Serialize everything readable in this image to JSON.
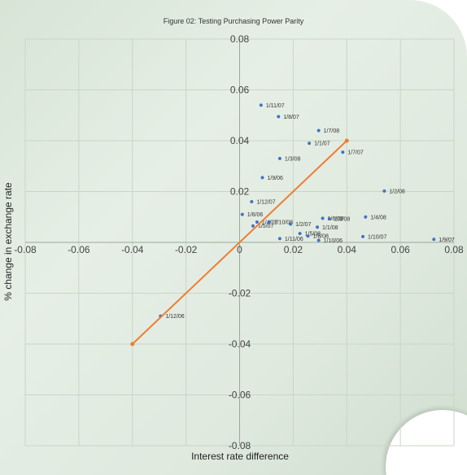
{
  "chart_data": {
    "type": "scatter",
    "title": "Figure 02: Testing Purchasing Power Parity",
    "xlabel": "Interest rate difference",
    "ylabel": "% change in exchange rate",
    "xlim": [
      -0.08,
      0.08
    ],
    "ylim": [
      -0.08,
      0.08
    ],
    "x_ticks": [
      "-0.08",
      "-0.06",
      "-0.04",
      "-0.02",
      "0",
      "0.02",
      "0.04",
      "0.06",
      "0.08"
    ],
    "y_ticks": [
      "0.08",
      "0.06",
      "0.04",
      "0.02",
      "0",
      "-0.02",
      "-0.04",
      "-0.06",
      "-0.08"
    ],
    "grid": true,
    "colors": {
      "points": "#4472c4",
      "line": "#ed7d31",
      "grid": "#c8d6c6"
    },
    "points": [
      {
        "label": "1/11/07",
        "x": 0.008,
        "y": 0.054
      },
      {
        "label": "1/8/07",
        "x": 0.0145,
        "y": 0.0495
      },
      {
        "label": "1/7/08",
        "x": 0.0295,
        "y": 0.044
      },
      {
        "label": "1/1/07",
        "x": 0.026,
        "y": 0.039
      },
      {
        "label": "1/7/07",
        "x": 0.0385,
        "y": 0.0355
      },
      {
        "label": "1/3/08",
        "x": 0.015,
        "y": 0.033
      },
      {
        "label": "1/9/06",
        "x": 0.0085,
        "y": 0.0255
      },
      {
        "label": "1/2/08",
        "x": 0.054,
        "y": 0.0202
      },
      {
        "label": "1/12/07",
        "x": 0.0045,
        "y": 0.016
      },
      {
        "label": "1/6/06",
        "x": 0.001,
        "y": 0.011
      },
      {
        "label": "1/4/08",
        "x": 0.047,
        "y": 0.01
      },
      {
        "label": "1/6/08",
        "x": 0.031,
        "y": 0.0095
      },
      {
        "label": "1/3/08",
        "x": 0.0335,
        "y": 0.0093
      },
      {
        "label": "1/4/07",
        "x": 0.0065,
        "y": 0.008
      },
      {
        "label": "1/5/07",
        "x": 0.005,
        "y": 0.0065
      },
      {
        "label": "1/10/08",
        "x": 0.011,
        "y": 0.008
      },
      {
        "label": "1/2/07",
        "x": 0.019,
        "y": 0.0072
      },
      {
        "label": "1/1/08",
        "x": 0.029,
        "y": 0.006
      },
      {
        "label": "1/5/08",
        "x": 0.0225,
        "y": 0.0035
      },
      {
        "label": "1/8/08",
        "x": 0.0255,
        "y": 0.0025
      },
      {
        "label": "1/11/06",
        "x": 0.015,
        "y": 0.0015
      },
      {
        "label": "1/10/06",
        "x": 0.0295,
        "y": 0.0008
      },
      {
        "label": "1/10/07",
        "x": 0.046,
        "y": 0.0023
      },
      {
        "label": "1/9/07",
        "x": 0.0725,
        "y": 0.0012
      },
      {
        "label": "1/12/06",
        "x": -0.0295,
        "y": -0.029
      }
    ],
    "line": {
      "x": [
        -0.04,
        0.04
      ],
      "y": [
        -0.04,
        0.04
      ]
    }
  }
}
